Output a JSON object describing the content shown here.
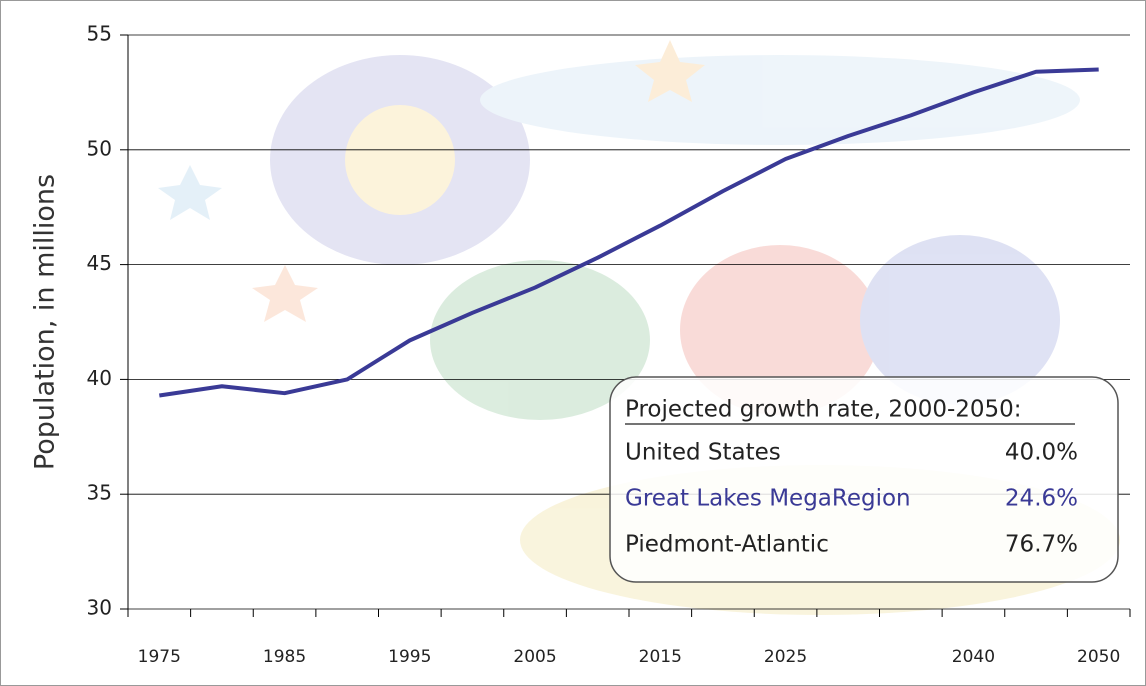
{
  "chart_data": {
    "type": "line",
    "y_label": "Population, in millions",
    "categories": [
      "1975",
      null,
      "1985",
      null,
      "1995",
      null,
      "2005",
      null,
      "2015",
      null,
      "2025",
      null,
      null,
      "2040",
      null,
      "2050"
    ],
    "series": [
      {
        "name": "Great Lakes MegaRegion",
        "color": "#3a3a96",
        "values": [
          39.3,
          39.7,
          39.4,
          40.0,
          41.7,
          42.9,
          44.0,
          45.3,
          46.7,
          48.2,
          49.6,
          50.6,
          51.5,
          52.5,
          53.4,
          53.5
        ]
      }
    ],
    "ylim": [
      30,
      55
    ],
    "yticks": [
      30,
      35,
      40,
      45,
      50,
      55
    ],
    "grid": true,
    "growth_box": {
      "title": "Projected growth rate, 2000-2050:",
      "rows": [
        {
          "region": "United States",
          "rate": "40.0%",
          "color": "#222222"
        },
        {
          "region": "Great Lakes MegaRegion",
          "rate": "24.6%",
          "color": "#3a3a96"
        },
        {
          "region": "Piedmont-Atlantic",
          "rate": "76.7%",
          "color": "#222222"
        }
      ]
    }
  }
}
